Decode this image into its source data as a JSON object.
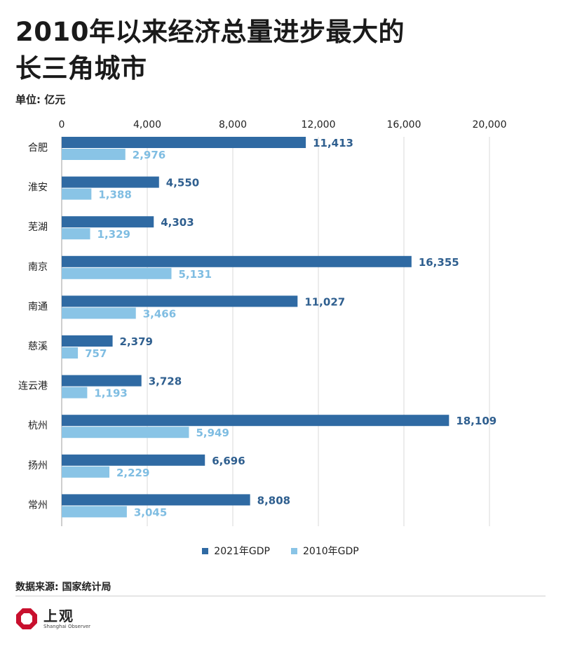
{
  "header": {
    "title_line1": "2010年以来经济总量进步最大的",
    "title_line2": "长三角城市",
    "unit": "单位: 亿元"
  },
  "chart_data": {
    "type": "bar",
    "orientation": "horizontal",
    "categories": [
      "合肥",
      "淮安",
      "芜湖",
      "南京",
      "南通",
      "慈溪",
      "连云港",
      "杭州",
      "扬州",
      "常州"
    ],
    "series": [
      {
        "name": "2021年GDP",
        "color": "#2f6aa3",
        "values": [
          11413,
          4550,
          4303,
          16355,
          11027,
          2379,
          3728,
          18109,
          6696,
          8808
        ]
      },
      {
        "name": "2010年GDP",
        "color": "#89c4e6",
        "values": [
          2976,
          1388,
          1329,
          5131,
          3466,
          757,
          1193,
          5949,
          2229,
          3045
        ]
      }
    ],
    "xlim": [
      0,
      20000
    ],
    "xticks": [
      0,
      4000,
      8000,
      12000,
      16000,
      20000
    ],
    "xtick_labels": [
      "0",
      "4,000",
      "8,000",
      "12,000",
      "16,000",
      "20,000"
    ],
    "grid": true,
    "legend_position": "bottom-center",
    "axis_position": "top"
  },
  "footer": {
    "source": "数据来源: 国家统计局",
    "logo_cn": "上观",
    "logo_en": "Shanghai Observer",
    "logo_color": "#c8102e"
  }
}
